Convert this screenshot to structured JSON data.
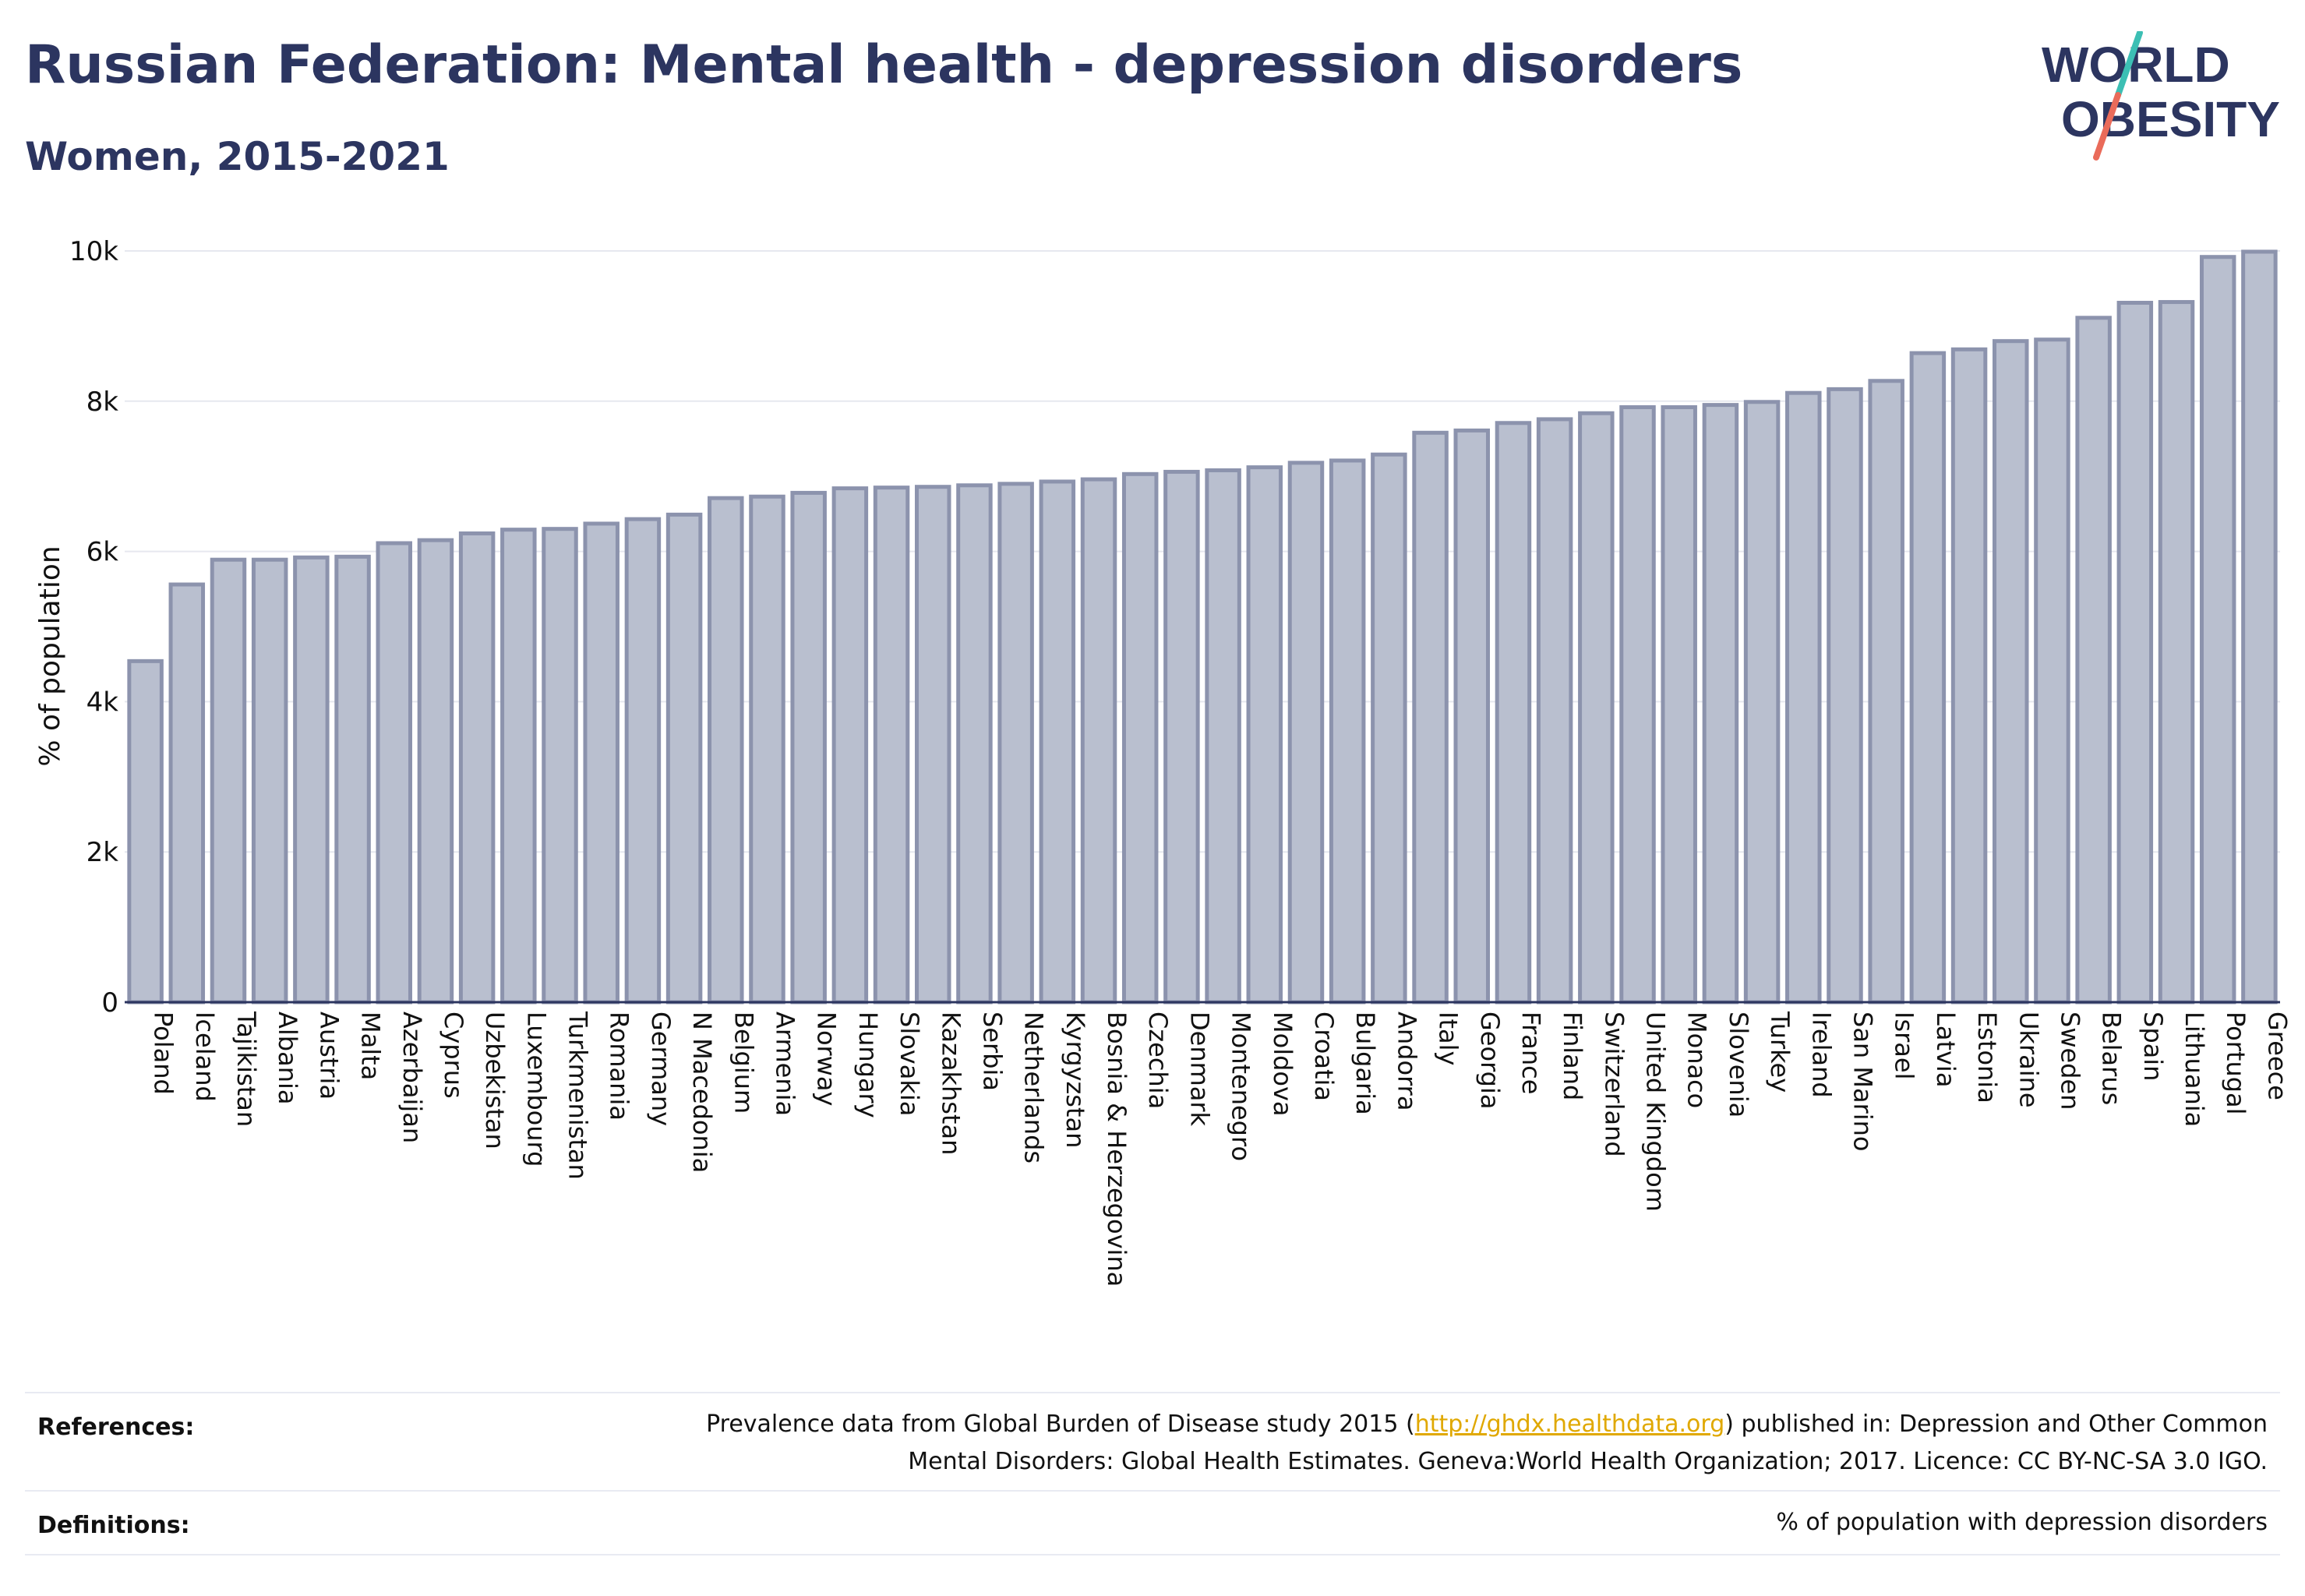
{
  "header": {
    "title": "Russian Federation: Mental health - depression disorders",
    "subtitle": "Women, 2015-2021",
    "logo_line1": "WORLD",
    "logo_line2": "OBESITY"
  },
  "colors": {
    "title": "#2c3560",
    "bar_fill": "#b9bfcf",
    "bar_stroke": "#8c93ad",
    "grid": "#e6e8ef",
    "axis": "#2c3560",
    "link": "#e0a800",
    "logo_teal": "#3cbfb4",
    "logo_coral": "#ea6b5a"
  },
  "chart_data": {
    "type": "bar",
    "ylabel": "% of population",
    "ylim": [
      0,
      10000
    ],
    "yticks": [
      0,
      2000,
      4000,
      6000,
      8000,
      10000
    ],
    "ytick_labels": [
      "0",
      "2k",
      "4k",
      "6k",
      "8k",
      "10k"
    ],
    "grid": true,
    "categories": [
      "Poland",
      "Iceland",
      "Tajikistan",
      "Albania",
      "Austria",
      "Malta",
      "Azerbaijan",
      "Cyprus",
      "Uzbekistan",
      "Luxembourg",
      "Turkmenistan",
      "Romania",
      "Germany",
      "N Macedonia",
      "Belgium",
      "Armenia",
      "Norway",
      "Hungary",
      "Slovakia",
      "Kazakhstan",
      "Serbia",
      "Netherlands",
      "Kyrgyzstan",
      "Bosnia & Herzegovina",
      "Czechia",
      "Denmark",
      "Montenegro",
      "Moldova",
      "Croatia",
      "Bulgaria",
      "Andorra",
      "Italy",
      "Georgia",
      "France",
      "Finland",
      "Switzerland",
      "United Kingdom",
      "Monaco",
      "Slovenia",
      "Turkey",
      "Ireland",
      "San Marino",
      "Israel",
      "Latvia",
      "Estonia",
      "Ukraine",
      "Sweden",
      "Belarus",
      "Spain",
      "Lithuania",
      "Portugal",
      "Greece"
    ],
    "values": [
      4540,
      5560,
      5890,
      5890,
      5920,
      5930,
      6110,
      6150,
      6240,
      6290,
      6300,
      6370,
      6430,
      6490,
      6710,
      6730,
      6780,
      6840,
      6850,
      6860,
      6880,
      6900,
      6930,
      6960,
      7030,
      7060,
      7080,
      7120,
      7180,
      7210,
      7290,
      7580,
      7610,
      7710,
      7760,
      7840,
      7920,
      7920,
      7950,
      7990,
      8110,
      8160,
      8270,
      8640,
      8690,
      8800,
      8820,
      9110,
      9310,
      9320,
      9920,
      9990
    ]
  },
  "footer": {
    "references_label": "References:",
    "references_pre": "Prevalence data from Global Burden of Disease study 2015 (",
    "references_link": "http://ghdx.healthdata.org",
    "references_post": ") published in: Depression and Other Common",
    "references_line2": "Mental Disorders: Global Health Estimates. Geneva:World Health Organization; 2017. Licence: CC BY-NC-SA 3.0 IGO.",
    "definitions_label": "Definitions:",
    "definitions_text": "% of population with depression disorders"
  }
}
